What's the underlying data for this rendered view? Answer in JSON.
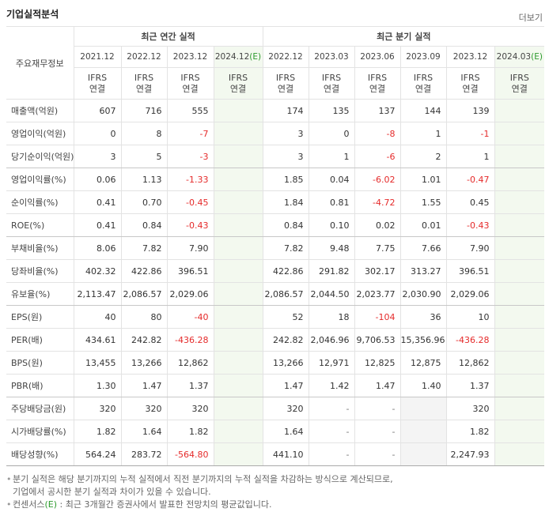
{
  "header": {
    "title": "기업실적분석",
    "more": "더보기"
  },
  "table": {
    "corner": "주요재무정보",
    "groups": [
      "최근 연간 실적",
      "최근 분기 실적"
    ],
    "periods": [
      "2021.12",
      "2022.12",
      "2023.12",
      {
        "label": "2024.12",
        "mark": "(E)"
      },
      "2022.12",
      "2023.03",
      "2023.06",
      "2023.09",
      "2023.12",
      {
        "label": "2024.03",
        "mark": "(E)"
      }
    ],
    "basis": [
      [
        "IFRS",
        "연결"
      ],
      [
        "IFRS",
        "연결"
      ],
      [
        "IFRS",
        "연결"
      ],
      [
        "IFRS",
        "연결"
      ],
      [
        "IFRS",
        "연결"
      ],
      [
        "IFRS",
        "연결"
      ],
      [
        "IFRS",
        "연결"
      ],
      [
        "IFRS",
        "연결"
      ],
      [
        "IFRS",
        "연결"
      ],
      [
        "IFRS",
        "연결"
      ]
    ],
    "rows": [
      {
        "label": "매출액(억원)",
        "cells": [
          "607",
          "716",
          "555",
          null,
          "174",
          "135",
          "137",
          "144",
          "139",
          null
        ]
      },
      {
        "label": "영업이익(억원)",
        "cells": [
          "0",
          "8",
          "-7",
          null,
          "3",
          "0",
          "-8",
          "1",
          "-1",
          null
        ]
      },
      {
        "label": "당기순이익(억원)",
        "cells": [
          "3",
          "5",
          "-3",
          null,
          "3",
          "1",
          "-6",
          "2",
          "1",
          null
        ]
      },
      {
        "label": "영업이익률(%)",
        "cells": [
          "0.06",
          "1.13",
          "-1.33",
          null,
          "1.85",
          "0.04",
          "-6.02",
          "1.01",
          "-0.47",
          null
        ]
      },
      {
        "label": "순이익률(%)",
        "cells": [
          "0.41",
          "0.70",
          "-0.45",
          null,
          "1.84",
          "0.81",
          "-4.72",
          "1.55",
          "0.45",
          null
        ]
      },
      {
        "label": "ROE(%)",
        "cells": [
          "0.41",
          "0.84",
          "-0.43",
          null,
          "0.84",
          "0.10",
          "0.02",
          "0.01",
          "-0.43",
          null
        ]
      },
      {
        "label": "부채비율(%)",
        "cells": [
          "8.06",
          "7.82",
          "7.90",
          null,
          "7.82",
          "9.48",
          "7.75",
          "7.66",
          "7.90",
          null
        ]
      },
      {
        "label": "당좌비율(%)",
        "cells": [
          "402.32",
          "422.86",
          "396.51",
          null,
          "422.86",
          "291.82",
          "302.17",
          "313.27",
          "396.51",
          null
        ]
      },
      {
        "label": "유보율(%)",
        "cells": [
          "2,113.47",
          "2,086.57",
          "2,029.06",
          null,
          "2,086.57",
          "2,044.50",
          "2,023.77",
          "2,030.90",
          "2,029.06",
          null
        ]
      },
      {
        "label": "EPS(원)",
        "cells": [
          "40",
          "80",
          "-40",
          null,
          "52",
          "18",
          "-104",
          "36",
          "10",
          null
        ]
      },
      {
        "label": "PER(배)",
        "cells": [
          "434.61",
          "242.82",
          "-436.28",
          null,
          "242.82",
          "2,046.96",
          "9,706.53",
          "15,356.96",
          "-436.28",
          null
        ]
      },
      {
        "label": "BPS(원)",
        "cells": [
          "13,455",
          "13,266",
          "12,862",
          null,
          "13,266",
          "12,971",
          "12,825",
          "12,875",
          "12,862",
          null
        ]
      },
      {
        "label": "PBR(배)",
        "cells": [
          "1.30",
          "1.47",
          "1.37",
          null,
          "1.47",
          "1.42",
          "1.47",
          "1.40",
          "1.37",
          null
        ]
      },
      {
        "label": "주당배당금(원)",
        "cells": [
          "320",
          "320",
          "320",
          null,
          "320",
          "-",
          "-",
          null,
          "320",
          null
        ]
      },
      {
        "label": "시가배당률(%)",
        "cells": [
          "1.82",
          "1.64",
          "1.82",
          null,
          "1.64",
          "-",
          "-",
          null,
          "1.82",
          null
        ]
      },
      {
        "label": "배당성향(%)",
        "cells": [
          "564.24",
          "283.72",
          "-564.80",
          null,
          "441.10",
          "-",
          "-",
          null,
          "2,247.93",
          null
        ]
      }
    ]
  },
  "notes": [
    [
      "분기 실적은 해당 분기까지의 누적 실적에서 직전 분기까지의 누적 실적을 차감하는 방식으로 계산되므로,",
      "기업에서 공시한 분기 실적과 차이가 있을 수 있습니다."
    ],
    [
      "컨센서스",
      "(E)",
      " : 최근 3개월간 증권사에서 발표한 전망치의 평균값입니다."
    ]
  ]
}
